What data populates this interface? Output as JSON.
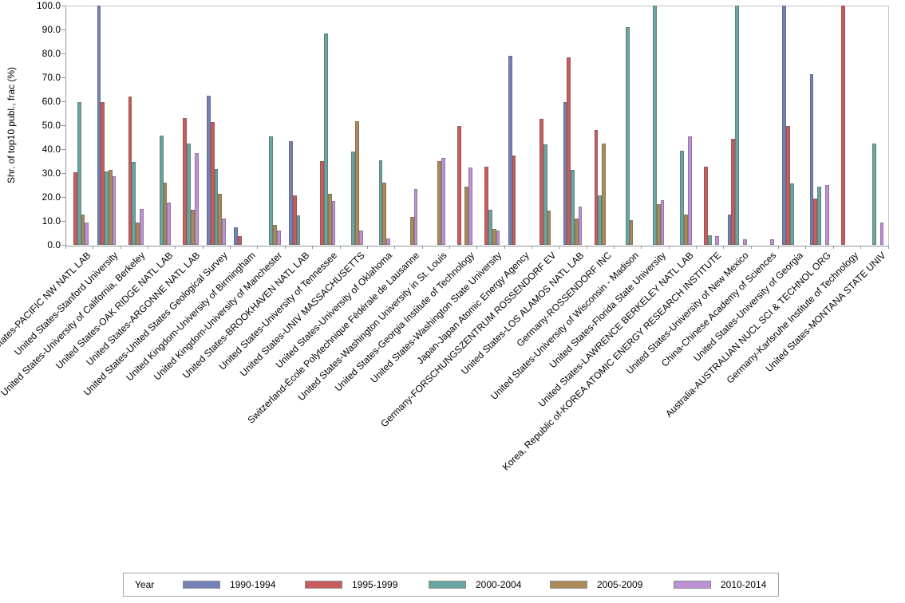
{
  "chart_data": {
    "type": "bar",
    "title": "",
    "ylabel": "Shr. of top10 publ., frac (%)",
    "xlabel": "",
    "ylim": [
      0,
      100
    ],
    "ytick_step": 10,
    "ytick_labels": [
      "0.0",
      "10.0",
      "20.0",
      "30.0",
      "40.0",
      "50.0",
      "60.0",
      "70.0",
      "80.0",
      "90.0",
      "100.0"
    ],
    "grid": false,
    "legend_position": "bottom",
    "legend_title": "Year",
    "series": [
      {
        "name": "1990-1994",
        "color": "#7381B6"
      },
      {
        "name": "1995-1999",
        "color": "#C95C5C"
      },
      {
        "name": "2000-2004",
        "color": "#69A6A1"
      },
      {
        "name": "2005-2009",
        "color": "#AB8A58"
      },
      {
        "name": "2010-2014",
        "color": "#BE90D5"
      }
    ],
    "categories": [
      "United States-PACIFIC NW NATL LAB",
      "United States-Stanford University",
      "United States-University of California, Berkeley",
      "United States-OAK RIDGE NATL LAB",
      "United States-ARGONNE NATL LAB",
      "United States-United States Geological Survey",
      "United Kingdom-University of Birmingham",
      "United Kingdom-University of Manchester",
      "United States-BROOKHAVEN NATL LAB",
      "United States-University of Tennessee",
      "United States-UNIV MASSACHUSETTS",
      "United States-University of Oklahoma",
      "Switzerland-École Polytechnique Fédérale de Lausanne",
      "United States-Washington University in St. Louis",
      "United States-Georgia Institute of Technology",
      "United States-Washington State University",
      "Japan-Japan Atomic Energy Agency",
      "Germany-FORSCHUNGSZENTRUM ROSSENDORF EV",
      "United States-LOS ALAMOS NATL LAB",
      "Germany-ROSSENDORF INC",
      "United States-University of Wisconsin - Madison",
      "United States-Florida State University",
      "United States-LAWRENCE BERKELEY NATL LAB",
      "Korea, Republic of-KOREA ATOMIC ENERGY RESEARCH INSTITUTE",
      "United States-University of New Mexico",
      "China-Chinese Academy of Sciences",
      "United States-University of Georgia",
      "Australia-AUSTRALIAN NUCL SCI & TECHNOL ORG",
      "Germany-Karlsruhe Institute of Technology",
      "United States-MONTANA STATE UNIV"
    ],
    "values": [
      [
        null,
        30.5,
        59.8,
        12.6,
        9.3
      ],
      [
        100,
        59.8,
        30.6,
        31.5,
        28.7
      ],
      [
        null,
        62.1,
        34.8,
        9.4,
        15.0
      ],
      [
        null,
        null,
        45.6,
        26.1,
        17.6
      ],
      [
        null,
        53.0,
        42.4,
        14.7,
        38.3
      ],
      [
        62.2,
        51.3,
        31.7,
        21.3,
        10.9
      ],
      [
        7.4,
        3.6,
        null,
        null,
        null
      ],
      [
        null,
        null,
        45.3,
        8.5,
        6.1
      ],
      [
        43.4,
        20.8,
        12.2,
        null,
        null
      ],
      [
        null,
        34.9,
        88.4,
        21.2,
        18.4
      ],
      [
        null,
        null,
        39.1,
        51.7,
        6.1
      ],
      [
        null,
        null,
        35.2,
        26.1,
        2.6
      ],
      [
        null,
        null,
        null,
        11.7,
        23.4
      ],
      [
        null,
        null,
        null,
        35.0,
        36.2
      ],
      [
        null,
        49.6,
        null,
        24.5,
        32.3
      ],
      [
        null,
        32.8,
        14.7,
        6.7,
        6.1
      ],
      [
        79.1,
        37.5,
        null,
        null,
        null
      ],
      [
        null,
        52.6,
        42.0,
        14.5,
        null
      ],
      [
        59.6,
        78.5,
        31.4,
        10.9,
        15.9
      ],
      [
        null,
        47.9,
        20.6,
        42.5,
        null
      ],
      [
        null,
        null,
        91.0,
        10.2,
        null
      ],
      [
        null,
        null,
        100,
        17.0,
        18.6
      ],
      [
        null,
        null,
        39.2,
        12.8,
        45.3
      ],
      [
        null,
        32.8,
        3.9,
        null,
        3.6
      ],
      [
        12.8,
        44.2,
        100,
        null,
        2.2
      ],
      [
        null,
        null,
        null,
        null,
        2.4
      ],
      [
        100,
        49.6,
        25.8,
        null,
        null
      ],
      [
        71.5,
        19.5,
        24.5,
        null,
        25.0
      ],
      [
        null,
        100,
        null,
        null,
        null
      ],
      [
        null,
        null,
        42.5,
        null,
        9.5
      ]
    ]
  }
}
